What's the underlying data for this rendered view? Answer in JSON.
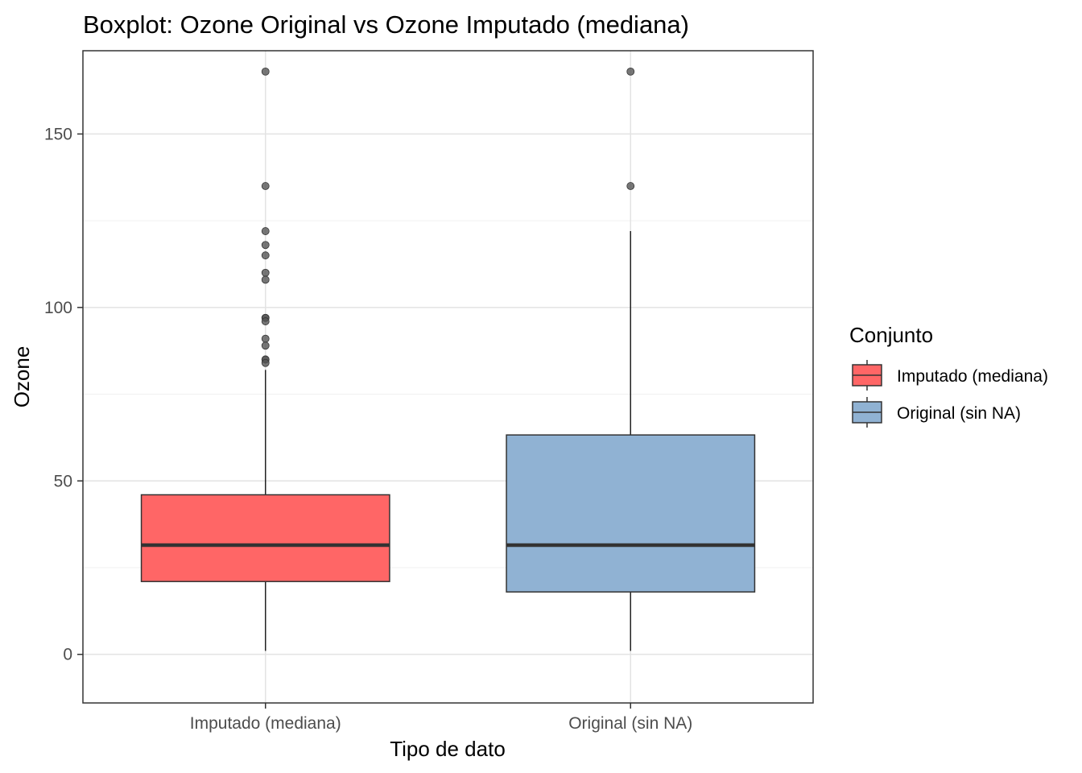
{
  "chart_data": {
    "type": "boxplot",
    "title": "Boxplot: Ozone Original vs Ozone Imputado (mediana)",
    "xlabel": "Tipo de dato",
    "ylabel": "Ozone",
    "ylim": [
      -14,
      174
    ],
    "yticks": [
      0,
      50,
      100,
      150
    ],
    "grid": true,
    "categories": [
      "Imputado (mediana)",
      "Original (sin NA)"
    ],
    "series": [
      {
        "name": "Imputado (mediana)",
        "color": "#ff6666",
        "whisker_low": 1,
        "q1": 21,
        "median": 31.5,
        "q3": 46,
        "whisker_high": 82,
        "outliers": [
          168,
          135,
          122,
          118,
          115,
          110,
          108,
          97,
          97,
          96,
          91,
          89,
          85,
          85,
          84
        ]
      },
      {
        "name": "Original (sin NA)",
        "color": "#90b2d3",
        "whisker_low": 1,
        "q1": 18,
        "median": 31.5,
        "q3": 63.25,
        "whisker_high": 122,
        "outliers": [
          168,
          135
        ]
      }
    ],
    "legend": {
      "title": "Conjunto",
      "position": "right",
      "entries": [
        "Imputado (mediana)",
        "Original (sin NA)"
      ]
    }
  }
}
